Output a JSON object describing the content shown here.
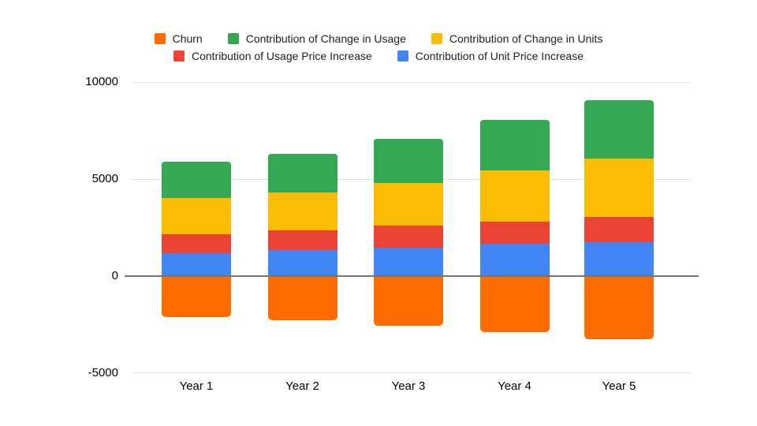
{
  "chart_data": {
    "type": "bar",
    "stacked": true,
    "title": "",
    "categories": [
      "Year 1",
      "Year 2",
      "Year 3",
      "Year 4",
      "Year 5"
    ],
    "series": [
      {
        "name": "Churn",
        "color": "#FF6D01",
        "values": [
          -2100,
          -2300,
          -2550,
          -2900,
          -3250
        ]
      },
      {
        "name": "Contribution of Unit Price Increase",
        "color": "#4285F4",
        "values": [
          1200,
          1350,
          1450,
          1650,
          1750
        ]
      },
      {
        "name": "Contribution of Usage Price Increase",
        "color": "#EA4335",
        "values": [
          950,
          1000,
          1150,
          1150,
          1300
        ]
      },
      {
        "name": "Contribution of Change in Units",
        "color": "#FBBC04",
        "values": [
          1900,
          1950,
          2200,
          2650,
          3000
        ]
      },
      {
        "name": "Contribution of Change in Usage",
        "color": "#34A853",
        "values": [
          1850,
          2000,
          2300,
          2600,
          3050
        ]
      }
    ],
    "stack_totals_positive": [
      5900,
      6300,
      7100,
      8050,
      9100
    ],
    "legend": {
      "position": "top",
      "items": [
        {
          "label": "Churn",
          "color": "#FF6D01"
        },
        {
          "label": "Contribution of Change in Usage",
          "color": "#34A853"
        },
        {
          "label": "Contribution of Change in Units",
          "color": "#FBBC04"
        },
        {
          "label": "Contribution of Usage Price Increase",
          "color": "#EA4335"
        },
        {
          "label": "Contribution of Unit Price Increase",
          "color": "#4285F4"
        }
      ]
    },
    "y_axis": {
      "min": -5000,
      "max": 10000,
      "tick_step": 5000,
      "ticks": [
        10000,
        5000,
        0,
        -5000
      ]
    },
    "x_axis": {
      "label": ""
    },
    "grid": true
  },
  "colors": {
    "background": "#FFFFFF",
    "grid_line": "#E3E3E3",
    "zero_line": "#747474",
    "axis_text": "#000000",
    "legend_text": "#202124"
  }
}
